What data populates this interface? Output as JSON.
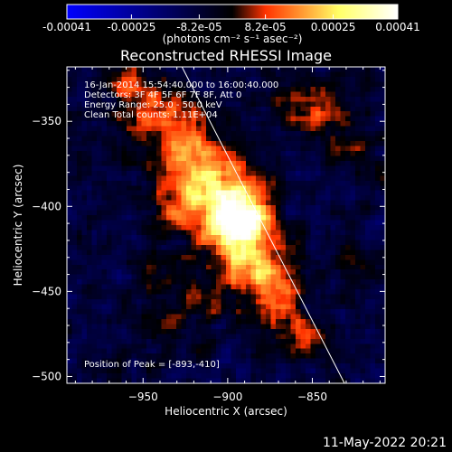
{
  "chart_data": {
    "type": "heatmap",
    "title": "Reconstructed RHESSI Image",
    "xlabel": "Heliocentric X (arcsec)",
    "ylabel": "Heliocentric Y (arcsec)",
    "xlim": [
      -995,
      -807
    ],
    "ylim": [
      -504,
      -318
    ],
    "x_ticks": [
      -950,
      -900,
      -850
    ],
    "y_ticks": [
      -350,
      -400,
      -450,
      -500
    ],
    "colorbar": {
      "units_label": "(photons cm⁻² s⁻¹ asec⁻²)",
      "range": [
        -0.00041,
        0.00041
      ],
      "ticks": [
        {
          "value": -0.00041,
          "label": "-0.00041"
        },
        {
          "value": -0.00025,
          "label": "-0.00025"
        },
        {
          "value": -8.2e-05,
          "label": "-8.2e-05"
        },
        {
          "value": 8.2e-05,
          "label": "8.2e-05"
        },
        {
          "value": 0.00025,
          "label": "0.00025"
        },
        {
          "value": 0.00041,
          "label": "0.00041"
        }
      ],
      "colors": [
        "#0000ff",
        "#000000",
        "#ff3300",
        "#ffff66",
        "#ffffff"
      ]
    },
    "info_lines": [
      "16-Jan-2014 15:54:40.000 to 16:00:40.000",
      "Detectors: 3F 4F 5F 6F 7F 8F, Att 0",
      "Energy Range: 25.0 - 50.0 keV",
      "Clean     Total counts: 1.11E+04"
    ],
    "peak": {
      "x": -893,
      "y": -410
    },
    "peak_label": "Position of Peak = [-893,-410]",
    "limb_line": {
      "x": [
        -927,
        -831
      ],
      "y": [
        -318,
        -504
      ]
    },
    "grid": false,
    "sources": [
      {
        "x": -893,
        "y": -410,
        "amp": 0.00041,
        "sx": 11,
        "sy": 14
      },
      {
        "x": -905,
        "y": -402,
        "amp": 0.00026,
        "sx": 20,
        "sy": 14
      },
      {
        "x": -915,
        "y": -380,
        "amp": 0.0002,
        "sx": 16,
        "sy": 16
      },
      {
        "x": -928,
        "y": -360,
        "amp": 0.00016,
        "sx": 14,
        "sy": 14
      },
      {
        "x": -948,
        "y": -342,
        "amp": 0.00015,
        "sx": 14,
        "sy": 12
      },
      {
        "x": -960,
        "y": -325,
        "amp": 0.00012,
        "sx": 10,
        "sy": 8
      },
      {
        "x": -880,
        "y": -435,
        "amp": 0.00022,
        "sx": 14,
        "sy": 12
      },
      {
        "x": -870,
        "y": -458,
        "amp": 0.00016,
        "sx": 12,
        "sy": 12
      },
      {
        "x": -855,
        "y": -478,
        "amp": 0.00017,
        "sx": 10,
        "sy": 8
      },
      {
        "x": -848,
        "y": -342,
        "amp": 0.00017,
        "sx": 14,
        "sy": 12
      },
      {
        "x": -824,
        "y": -365,
        "amp": 0.00012,
        "sx": 8,
        "sy": 8
      },
      {
        "x": -910,
        "y": -452,
        "amp": 0.00012,
        "sx": 10,
        "sy": 10
      },
      {
        "x": -935,
        "y": -470,
        "amp": 0.0001,
        "sx": 10,
        "sy": 8
      },
      {
        "x": -940,
        "y": -440,
        "amp": 8e-05,
        "sx": 10,
        "sy": 10
      },
      {
        "x": -826,
        "y": -432,
        "amp": 8e-05,
        "sx": 8,
        "sy": 10
      }
    ],
    "noise_level": 5e-05,
    "background": -9e-05
  },
  "footer": {
    "timestamp": "11-May-2022 20:21"
  }
}
